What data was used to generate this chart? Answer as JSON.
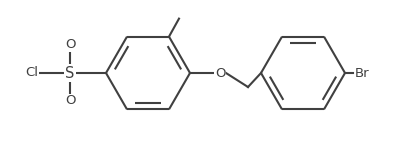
{
  "background_color": "#ffffff",
  "line_color": "#404040",
  "line_width": 1.5,
  "font_size": 9.5,
  "figsize": [
    4.05,
    1.45
  ],
  "dpi": 100,
  "xlim": [
    0,
    405
  ],
  "ylim": [
    0,
    145
  ]
}
